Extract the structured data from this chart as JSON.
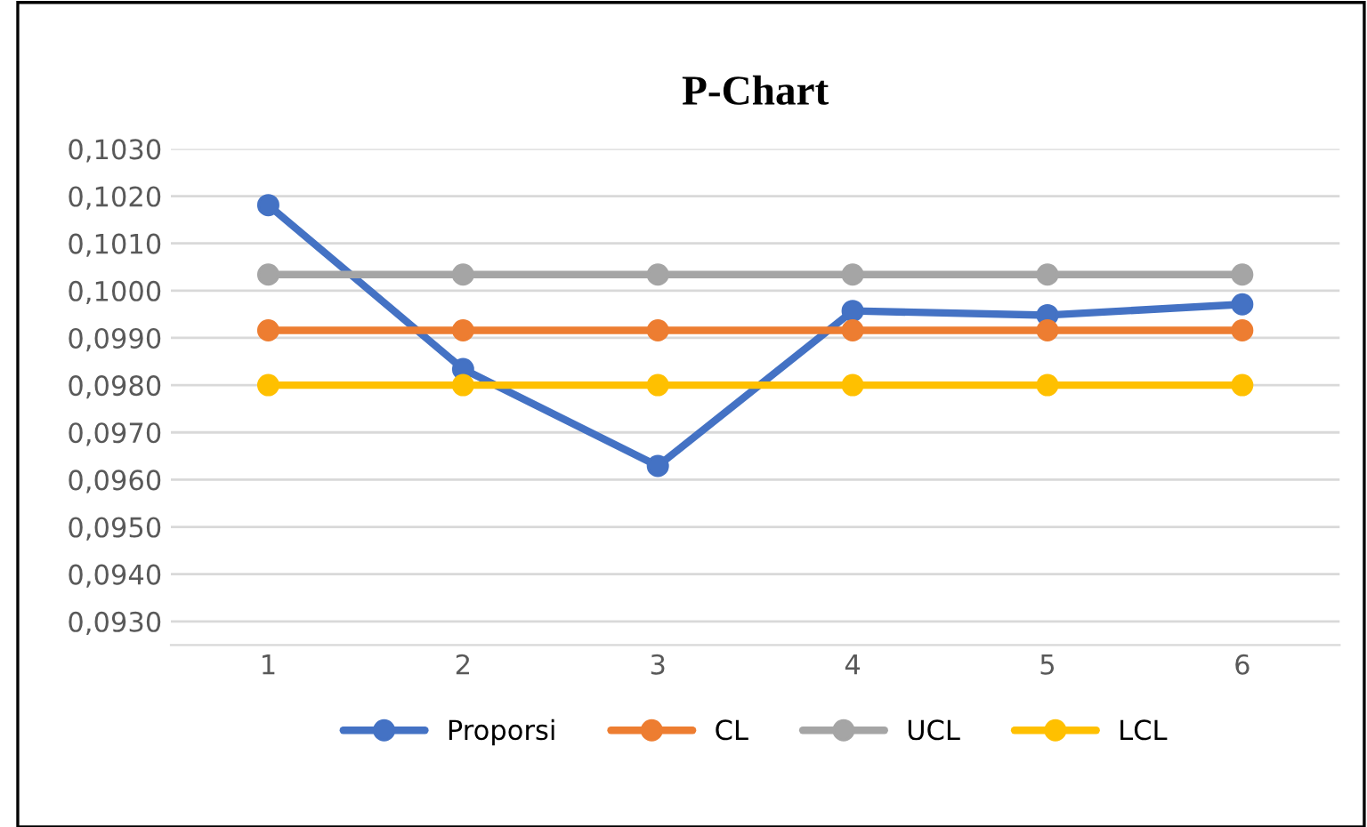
{
  "chart_data": {
    "type": "line",
    "title": "P-Chart",
    "categories": [
      "1",
      "2",
      "3",
      "4",
      "5",
      "6"
    ],
    "series": [
      {
        "name": "Proporsi",
        "color": "#4472c4",
        "values": [
          0.10181,
          0.09834,
          0.09629,
          0.09957,
          0.09948,
          0.09971
        ]
      },
      {
        "name": "CL",
        "color": "#ed7d31",
        "values": [
          0.09916,
          0.09916,
          0.09916,
          0.09916,
          0.09916,
          0.09916
        ]
      },
      {
        "name": "UCL",
        "color": "#a5a5a5",
        "values": [
          0.10034,
          0.10034,
          0.10034,
          0.10034,
          0.10034,
          0.10034
        ]
      },
      {
        "name": "LCL",
        "color": "#ffc000",
        "values": [
          0.098,
          0.098,
          0.098,
          0.098,
          0.098,
          0.098
        ]
      }
    ],
    "ylim": [
      0.0925,
      0.103
    ],
    "yticks": [
      {
        "value": 0.093,
        "label": "0,0930"
      },
      {
        "value": 0.094,
        "label": "0,0940"
      },
      {
        "value": 0.095,
        "label": "0,0950"
      },
      {
        "value": 0.096,
        "label": "0,0960"
      },
      {
        "value": 0.097,
        "label": "0,0970"
      },
      {
        "value": 0.098,
        "label": "0,0980"
      },
      {
        "value": 0.099,
        "label": "0,0990"
      },
      {
        "value": 0.1,
        "label": "0,1000"
      },
      {
        "value": 0.101,
        "label": "0,1010"
      },
      {
        "value": 0.102,
        "label": "0,1020"
      },
      {
        "value": 0.103,
        "label": "0,1030"
      }
    ],
    "grid": "y",
    "legend": "bottom",
    "marker": "circle",
    "line_style": "solid"
  }
}
